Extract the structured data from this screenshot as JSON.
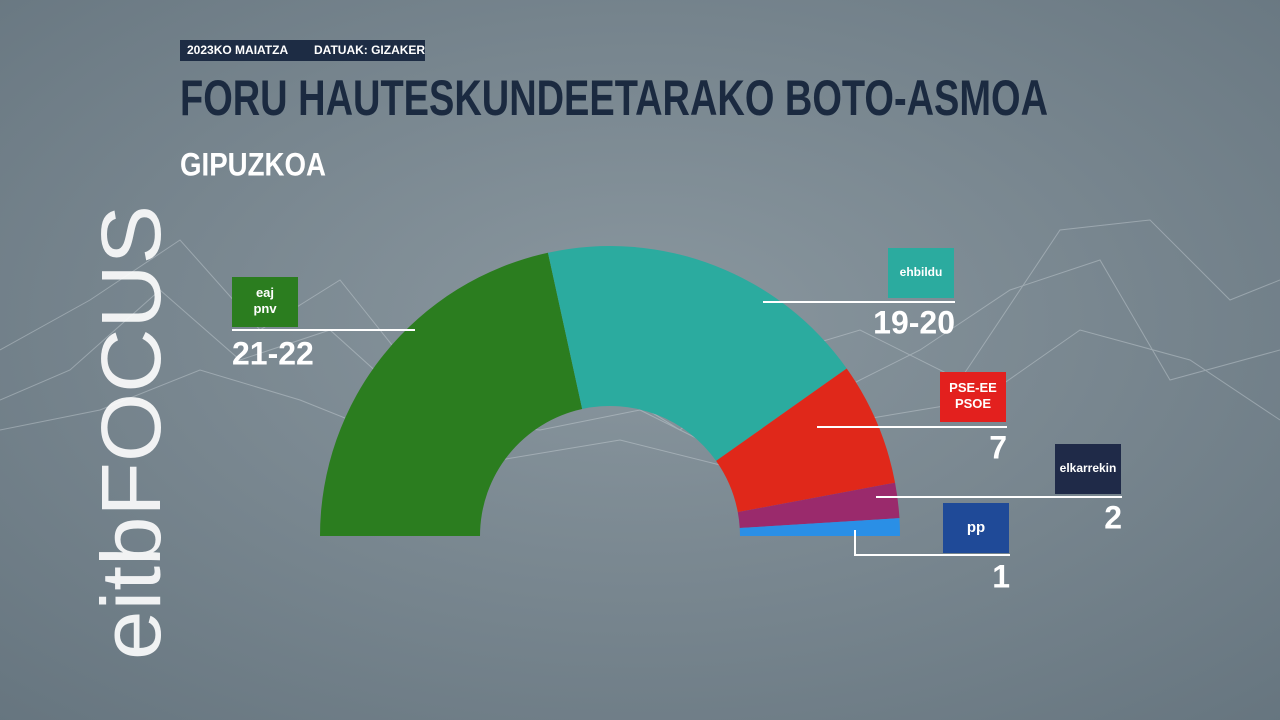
{
  "chart_data": {
    "type": "semicircle",
    "date_label": "2023KO MAIATZA",
    "source_label": "DATUAK: GIZAKER",
    "title": "FORU HAUTESKUNDEETARAKO BOTO-ASMOA",
    "subtitle": "GIPUZKOA",
    "watermark": "eitbFOCUS",
    "categories": [
      "eaj\npnv",
      "ehbildu",
      "PSE-EE\nPSOE",
      "elkarrekin",
      "pp"
    ],
    "values": [
      22,
      19,
      7,
      2,
      1
    ],
    "value_labels": [
      "21-22",
      "19-20",
      "7",
      "2",
      "1"
    ],
    "colors": [
      "#2b7d1f",
      "#2bab9f",
      "#e0281a",
      "#9a2a6c",
      "#2a8fe6"
    ],
    "logo_colors": [
      "#2b7d1f",
      "#2bab9f",
      "#e3201e",
      "#1f2a48",
      "#1f4a98"
    ]
  }
}
